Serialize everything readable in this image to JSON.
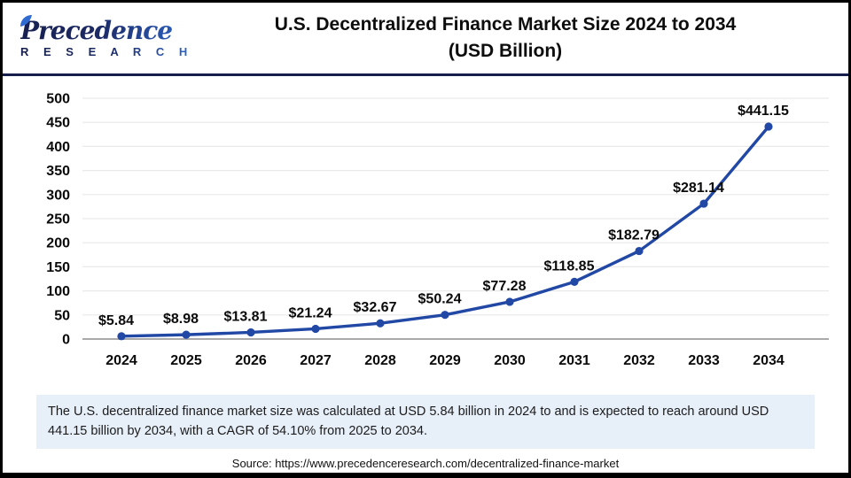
{
  "header": {
    "logo": {
      "brand": "Precedence",
      "sub": "R E S E A R C H"
    },
    "title_line1": "U.S. Decentralized Finance Market Size 2024 to 2034",
    "title_line2": "(USD Billion)"
  },
  "chart_data": {
    "type": "line",
    "title": "U.S. Decentralized Finance Market Size 2024 to 2034 (USD Billion)",
    "categories": [
      "2024",
      "2025",
      "2026",
      "2027",
      "2028",
      "2029",
      "2030",
      "2031",
      "2032",
      "2033",
      "2034"
    ],
    "values": [
      5.84,
      8.98,
      13.81,
      21.24,
      32.67,
      50.24,
      77.28,
      118.85,
      182.79,
      281.14,
      441.15
    ],
    "data_label_prefix": "$",
    "xlabel": "",
    "ylabel": "",
    "ylim": [
      0,
      500
    ],
    "ytick_step": 50,
    "grid": "horizontal",
    "legend": "none",
    "line_color": "#2248a5",
    "marker_color": "#2248a5",
    "grid_color": "#e9e9e9",
    "baseline_color": "#aaaaaa",
    "label_color": "#0a0a0a"
  },
  "note": {
    "text": "The U.S. decentralized finance market size was calculated at USD 5.84 billion in 2024 to and is expected to reach around USD 441.15 billion by 2034, with a CAGR of 54.10% from 2025 to 2034."
  },
  "source": {
    "text": "Source: https://www.precedenceresearch.com/decentralized-finance-market"
  }
}
